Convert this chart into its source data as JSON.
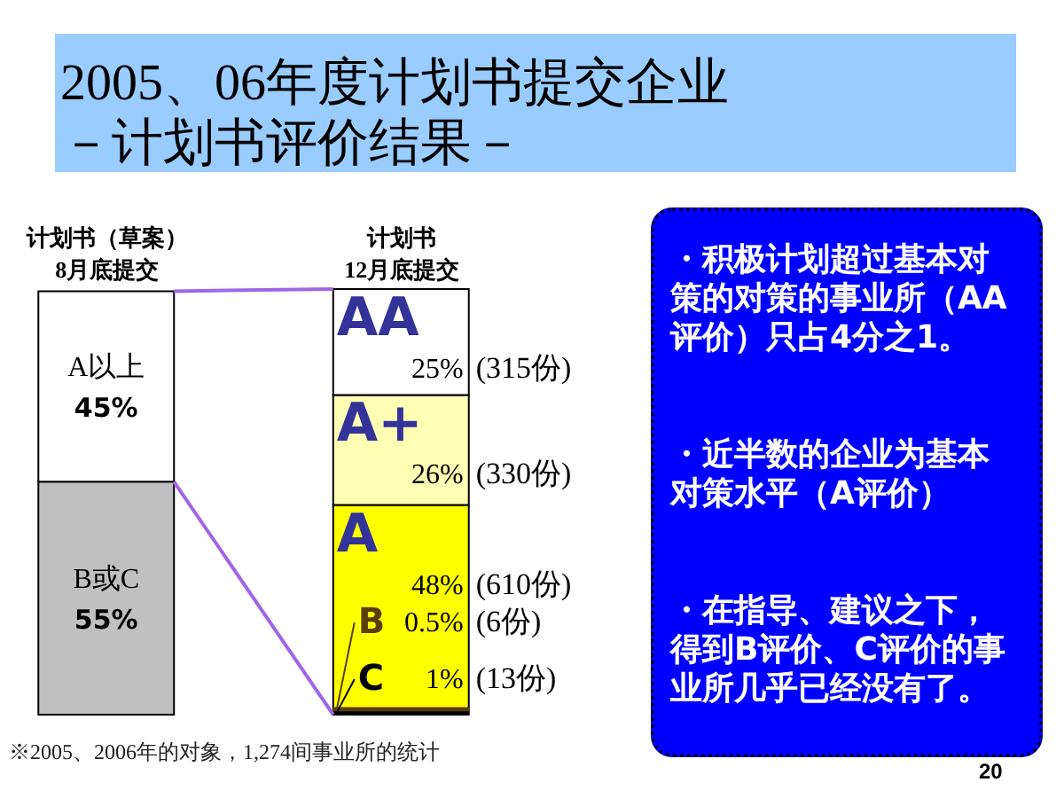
{
  "chart_data": {
    "type": "bar",
    "title": "2005、06年度计划书提交企业",
    "subtitle": "－计划书评价结果－",
    "categories": [
      "计划书（草案）\n8月底提交",
      "计划书\n12月底提交"
    ],
    "stacked": true,
    "tick_labels": "x",
    "series": [
      {
        "name": "B或C",
        "color": "#c0c0c0",
        "values": [
          55,
          null
        ],
        "value_labels": [
          "55%",
          null
        ]
      },
      {
        "name": "A以上",
        "color": "#ffffff",
        "values": [
          45,
          null
        ],
        "value_labels": [
          "45%",
          null
        ]
      },
      {
        "name": "C",
        "color": "#000000",
        "values": [
          null,
          1
        ],
        "value_labels": [
          null,
          "1%"
        ]
      },
      {
        "name": "B",
        "color": "#5c3d00",
        "values": [
          null,
          0.5
        ],
        "value_labels": [
          null,
          "0.5%"
        ]
      },
      {
        "name": "A",
        "color": "#ffff00",
        "values": [
          null,
          48
        ],
        "value_labels": [
          null,
          "48%"
        ]
      },
      {
        "name": "A+",
        "color": "#ffffb3",
        "values": [
          null,
          26
        ],
        "value_labels": [
          null,
          "26%"
        ]
      },
      {
        "name": "AA",
        "color": "#ffffff",
        "values": [
          null,
          25
        ],
        "value_labels": [
          null,
          "25%"
        ]
      }
    ],
    "annotations": [
      "・积极计划超过基本对策的对策的事业所（AA评价）只占4分之1。",
      "・近半数的企业为基本对策水平（A评价）",
      "・在指导、建议之下，得到B评价、C评价的事业所几乎已经没有了。",
      "※2005、2006年的对象，1,274间事业所的统计",
      "20",
      "(315份)",
      "(330份)",
      "(610份)",
      "(6份)",
      "(13份)"
    ]
  }
}
